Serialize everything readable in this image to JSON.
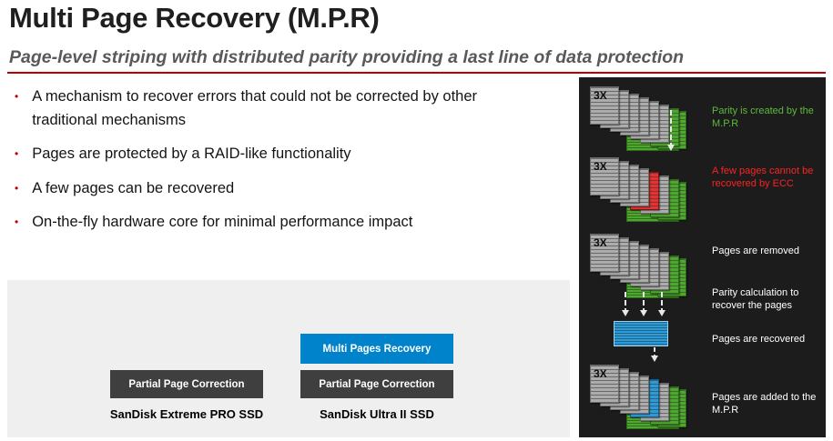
{
  "slide": {
    "title": "Multi Page Recovery (M.P.R)",
    "subtitle": "Page-level striping with distributed parity providing a last line of data protection",
    "bullets": [
      "A mechanism to recover errors that could not be corrected  by other traditional mechanisms",
      "Pages are protected by a RAID-like functionality",
      "A few pages can be recovered",
      "On-the-fly hardware core for minimal performance impact"
    ],
    "bullet_marker": "•"
  },
  "comparison": {
    "extreme_pro": {
      "feature": "Partial Page Correction",
      "label": "SanDisk Extreme PRO SSD"
    },
    "ultra_ii": {
      "feature_top": "Multi Pages Recovery",
      "feature_bottom": "Partial Page Correction",
      "label": "SanDisk Ultra II SSD"
    }
  },
  "diagram": {
    "stack_label": "3X",
    "annotations": [
      {
        "text": "Parity is created by the M.P.R",
        "color": "#5DBA3B"
      },
      {
        "text": "A few pages cannot be recovered by ECC",
        "color": "#FF2222"
      },
      {
        "text": "Pages are removed",
        "color": "#FFFFFF"
      },
      {
        "text": "Parity calculation to recover the pages",
        "color": "#FFFFFF"
      },
      {
        "text": "Pages are recovered",
        "color": "#FFFFFF"
      },
      {
        "text": "Pages are added to the M.P.R",
        "color": "#FFFFFF"
      }
    ]
  },
  "colors": {
    "accent_red": "#C00000",
    "mpr_blue": "#0083CA",
    "button_dark": "#3F3F3F",
    "page_green": "#4EA72E",
    "page_red": "#E53232",
    "page_blue": "#2E9BD6",
    "diagram_bg": "#1C1C1C",
    "panel_bg": "#EFEFEF"
  }
}
